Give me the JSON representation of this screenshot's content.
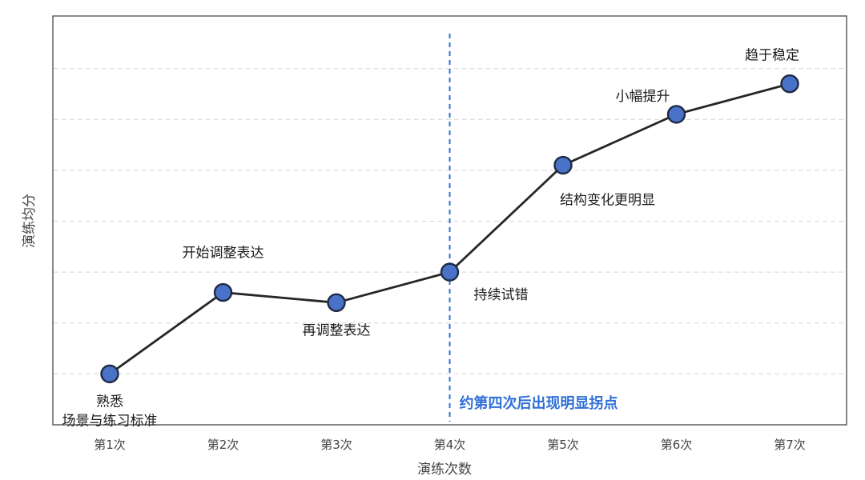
{
  "chart_data": {
    "type": "line",
    "xlabel": "演练次数",
    "ylabel": "演练均分",
    "categories": [
      "第1次",
      "第2次",
      "第3次",
      "第4次",
      "第5次",
      "第6次",
      "第7次"
    ],
    "values": [
      1.0,
      2.6,
      2.4,
      3.0,
      5.1,
      6.1,
      6.7
    ],
    "ylim": [
      0,
      8.0
    ],
    "grid": true,
    "gridlines": [
      1,
      2,
      3,
      4,
      5,
      6,
      7
    ],
    "annotations": [
      {
        "index": 0,
        "lines": [
          "熟悉",
          "场景与练习标准"
        ],
        "placement": "below"
      },
      {
        "index": 1,
        "lines": [
          "开始调整表达"
        ],
        "placement": "above"
      },
      {
        "index": 2,
        "lines": [
          "再调整表达"
        ],
        "placement": "below"
      },
      {
        "index": 3,
        "lines": [
          "持续试错"
        ],
        "placement": "below-right"
      },
      {
        "index": 4,
        "lines": [
          "结构变化更明显"
        ],
        "placement": "below-right"
      },
      {
        "index": 5,
        "lines": [
          "小幅提升"
        ],
        "placement": "above-left"
      },
      {
        "index": 6,
        "lines": [
          "趋于稳定"
        ],
        "placement": "above-left"
      }
    ],
    "marker": {
      "at_index": 3,
      "label": "约第四次后出现明显拐点",
      "color": "#2f6fd6"
    },
    "colors": {
      "point_fill": "#4a72c8",
      "line": "#262626"
    }
  }
}
